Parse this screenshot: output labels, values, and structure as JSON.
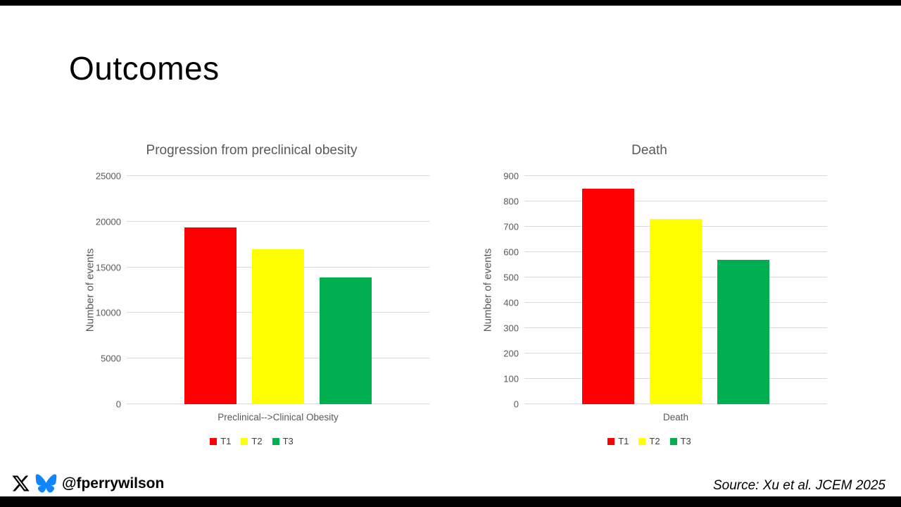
{
  "slide": {
    "title": "Outcomes",
    "handle": "@fperrywilson",
    "source": "Source: Xu et al. JCEM 2025"
  },
  "colors": {
    "t1": "#FF0000",
    "t2": "#FFFF00",
    "t3": "#00B050",
    "axis_text": "#595959",
    "gridline": "#D9D9D9",
    "bluesky_blue": "#1185FE",
    "x_black": "#000000"
  },
  "chart_data": [
    {
      "type": "bar",
      "title": "Progression from preclinical obesity",
      "ylabel": "Number of events",
      "xlabel": "Preclinical--&gt;Clinical Obesity",
      "xlabel_plain": "Preclinical-->Clinical Obesity",
      "categories": [
        "Preclinical-->Clinical Obesity"
      ],
      "series": [
        {
          "name": "T1",
          "value": 19400,
          "color": "#FF0000"
        },
        {
          "name": "T2",
          "value": 17000,
          "color": "#FFFF00"
        },
        {
          "name": "T3",
          "value": 13900,
          "color": "#00B050"
        }
      ],
      "ylim": [
        0,
        25000
      ],
      "ytick_step": 5000,
      "grid": true,
      "legend_position": "bottom"
    },
    {
      "type": "bar",
      "title": "Death",
      "ylabel": "Number of events",
      "xlabel": "Death",
      "xlabel_plain": "Death",
      "categories": [
        "Death"
      ],
      "series": [
        {
          "name": "T1",
          "value": 850,
          "color": "#FF0000"
        },
        {
          "name": "T2",
          "value": 730,
          "color": "#FFFF00"
        },
        {
          "name": "T3",
          "value": 570,
          "color": "#00B050"
        }
      ],
      "ylim": [
        0,
        900
      ],
      "ytick_step": 100,
      "grid": true,
      "legend_position": "bottom"
    }
  ]
}
